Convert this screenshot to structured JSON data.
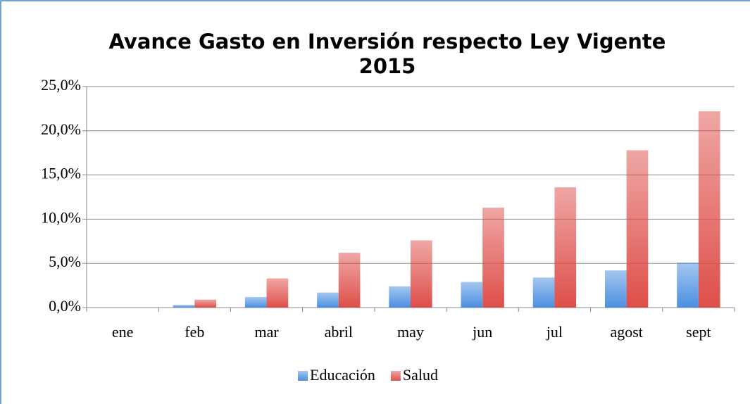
{
  "chart_data": {
    "type": "bar",
    "title": "Avance Gasto en Inversión respecto Ley Vigente 2015",
    "categories": [
      "ene",
      "feb",
      "mar",
      "abril",
      "may",
      "jun",
      "jul",
      "agost",
      "sept"
    ],
    "series": [
      {
        "name": "Educación",
        "color": "#4a8fe0",
        "values": [
          0,
          0.3,
          1.2,
          1.7,
          2.4,
          2.9,
          3.4,
          4.2,
          5.1
        ]
      },
      {
        "name": "Salud",
        "color": "#de4f4a",
        "values": [
          0,
          0.9,
          3.3,
          6.2,
          7.6,
          11.3,
          13.6,
          17.8,
          22.2
        ]
      }
    ],
    "ylim": [
      0,
      25
    ],
    "yticks": [
      {
        "value": 0,
        "label": "0,0%"
      },
      {
        "value": 5,
        "label": "5,0%"
      },
      {
        "value": 10,
        "label": "10,0%"
      },
      {
        "value": 15,
        "label": "15,0%"
      },
      {
        "value": 20,
        "label": "20,0%"
      },
      {
        "value": 25,
        "label": "25,0%"
      }
    ],
    "grid": true,
    "legend": "bottom"
  }
}
